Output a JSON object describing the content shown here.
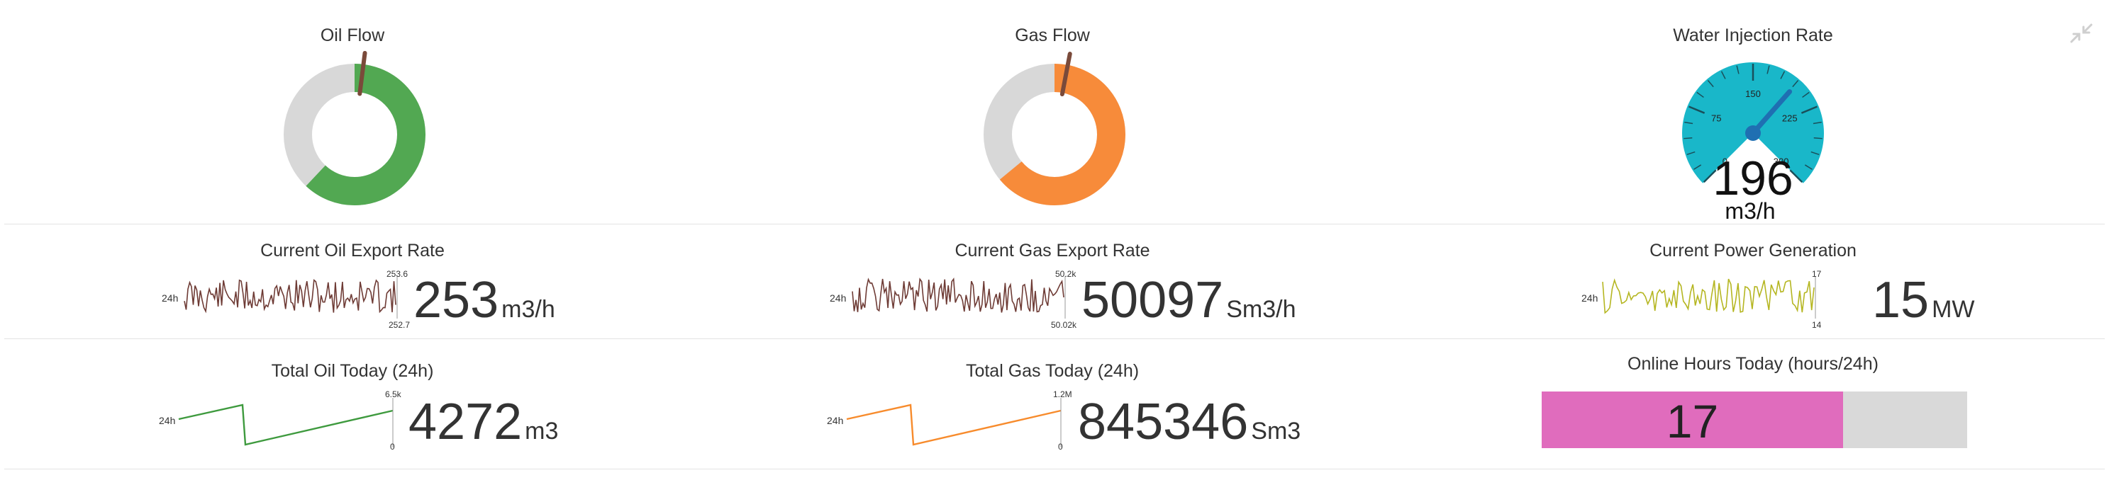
{
  "colors": {
    "oil": "#52a852",
    "gas": "#f78b3a",
    "water": "#19b7c9",
    "track": "#d8d8d8",
    "needle": "#7a4a3a",
    "oil_spark": "#6e3b35",
    "gas_spark": "#6e3b35",
    "power_spark": "#b5b621",
    "oil_total": "#3e9a3e",
    "gas_total": "#f78b2c",
    "online_fill": "#e06cbd",
    "online_track": "#d9d9d9"
  },
  "icons": {
    "compress": "compress-icon"
  },
  "oil_flow": {
    "title": "Oil Flow",
    "fraction": 0.62,
    "needle_fraction": 0.02
  },
  "gas_flow": {
    "title": "Gas Flow",
    "fraction": 0.64,
    "needle_fraction": 0.03
  },
  "water_injection": {
    "title": "Water Injection Rate",
    "value": 196,
    "min": 0,
    "max": 300,
    "ticks": [
      "0",
      "75",
      "150",
      "225",
      "300"
    ],
    "value_label": "196",
    "unit": "m3/h"
  },
  "oil_export": {
    "title": "Current Oil Export Rate",
    "range_label": "24h",
    "max_label": "253.6",
    "min_label": "252.7",
    "value": "253",
    "unit": "m3/h"
  },
  "gas_export": {
    "title": "Current Gas Export Rate",
    "range_label": "24h",
    "max_label": "50.2k",
    "min_label": "50.02k",
    "value": "50097",
    "unit": "Sm3/h"
  },
  "power": {
    "title": "Current Power Generation",
    "range_label": "24h",
    "max_label": "17",
    "min_label": "14",
    "value": "15",
    "unit": "MW"
  },
  "oil_total": {
    "title": "Total Oil Today (24h)",
    "range_label": "24h",
    "max_label": "6.5k",
    "min_label": "0",
    "value": "4272",
    "unit": "m3"
  },
  "gas_total": {
    "title": "Total Gas Today (24h)",
    "range_label": "24h",
    "max_label": "1.2M",
    "min_label": "0",
    "value": "845346",
    "unit": "Sm3"
  },
  "online_hours": {
    "title": "Online Hours Today (hours/24h)",
    "value": "17",
    "max": 24
  }
}
